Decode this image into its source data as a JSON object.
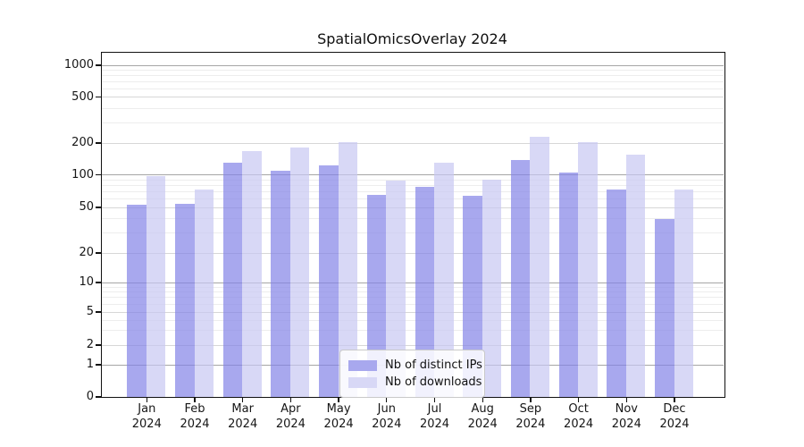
{
  "chart_data": {
    "type": "bar",
    "title": "SpatialOmicsOverlay 2024",
    "categories": [
      "Jan",
      "Feb",
      "Mar",
      "Apr",
      "May",
      "Jun",
      "Jul",
      "Aug",
      "Sep",
      "Oct",
      "Nov",
      "Dec"
    ],
    "year_label": "2024",
    "xlabel": "",
    "ylabel": "",
    "y_scale": "symlog",
    "y_ticks": [
      0,
      1,
      2,
      5,
      10,
      20,
      50,
      100,
      200,
      500,
      1000
    ],
    "ylim": [
      0,
      1400
    ],
    "grid": true,
    "legend_position": "lower center",
    "series": [
      {
        "name": "Nb of distinct IPs",
        "color": "#a8a8ee",
        "values": [
          52,
          53,
          129,
          108,
          122,
          65,
          76,
          63,
          136,
          103,
          72,
          39
        ]
      },
      {
        "name": "Nb of downloads",
        "color": "#d8d8f6",
        "values": [
          96,
          73,
          166,
          180,
          201,
          87,
          130,
          89,
          224,
          203,
          154,
          72
        ]
      }
    ]
  }
}
